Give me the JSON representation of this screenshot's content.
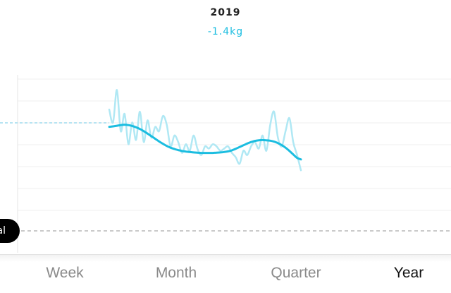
{
  "header": {
    "period": "2019",
    "change": "-1.4kg"
  },
  "goal_label": "al",
  "tabs": [
    {
      "label": "Week",
      "active": false
    },
    {
      "label": "Month",
      "active": false
    },
    {
      "label": "Quarter",
      "active": false
    },
    {
      "label": "Year",
      "active": true
    }
  ],
  "colors": {
    "accent": "#1bbde0",
    "raw_line": "#b0e8f4",
    "grid": "#efefef",
    "goal_line": "#aaaaaa"
  },
  "chart_data": {
    "type": "line",
    "grid": true,
    "ylim": [
      0,
      8
    ],
    "x": [
      0,
      0.02,
      0.04,
      0.06,
      0.08,
      0.1,
      0.12,
      0.14,
      0.16,
      0.18,
      0.2,
      0.22,
      0.24,
      0.26,
      0.28,
      0.3,
      0.32,
      0.34,
      0.36,
      0.38,
      0.4,
      0.42,
      0.44,
      0.46,
      0.48,
      0.5,
      0.52,
      0.54,
      0.56,
      0.58,
      0.6,
      0.62,
      0.64,
      0.66,
      0.68,
      0.7,
      0.72,
      0.74,
      0.76,
      0.78,
      0.8,
      0.82,
      0.84,
      0.86,
      0.88,
      0.9,
      0.92,
      0.94,
      0.96,
      0.98,
      1.0
    ],
    "series": [
      {
        "values": [
          6.6,
          6.0,
          7.5,
          5.6,
          6.4,
          5.0,
          6.0,
          5.2,
          6.5,
          5.1,
          6.1,
          5.3,
          5.8,
          5.6,
          6.3,
          5.9,
          4.9,
          5.4,
          5.1,
          4.6,
          5.0,
          4.7,
          5.4,
          4.8,
          4.5,
          4.9,
          4.8,
          5.0,
          4.9,
          4.7,
          4.8,
          4.9,
          4.6,
          4.4,
          4.1,
          4.7,
          4.5,
          4.9,
          5.1,
          4.8,
          5.4,
          4.7,
          5.9,
          6.5,
          5.3,
          4.9,
          5.6,
          6.2,
          5.1,
          4.5,
          3.8
        ]
      },
      {
        "values": [
          5.8,
          5.82,
          5.85,
          5.88,
          5.9,
          5.88,
          5.84,
          5.78,
          5.7,
          5.6,
          5.49,
          5.37,
          5.25,
          5.13,
          5.02,
          4.92,
          4.84,
          4.78,
          4.73,
          4.69,
          4.66,
          4.64,
          4.62,
          4.61,
          4.6,
          4.6,
          4.6,
          4.6,
          4.61,
          4.62,
          4.64,
          4.67,
          4.72,
          4.79,
          4.87,
          4.95,
          5.03,
          5.1,
          5.15,
          5.18,
          5.19,
          5.18,
          5.16,
          5.12,
          5.05,
          4.96,
          4.84,
          4.69,
          4.53,
          4.37,
          4.3
        ]
      }
    ]
  }
}
